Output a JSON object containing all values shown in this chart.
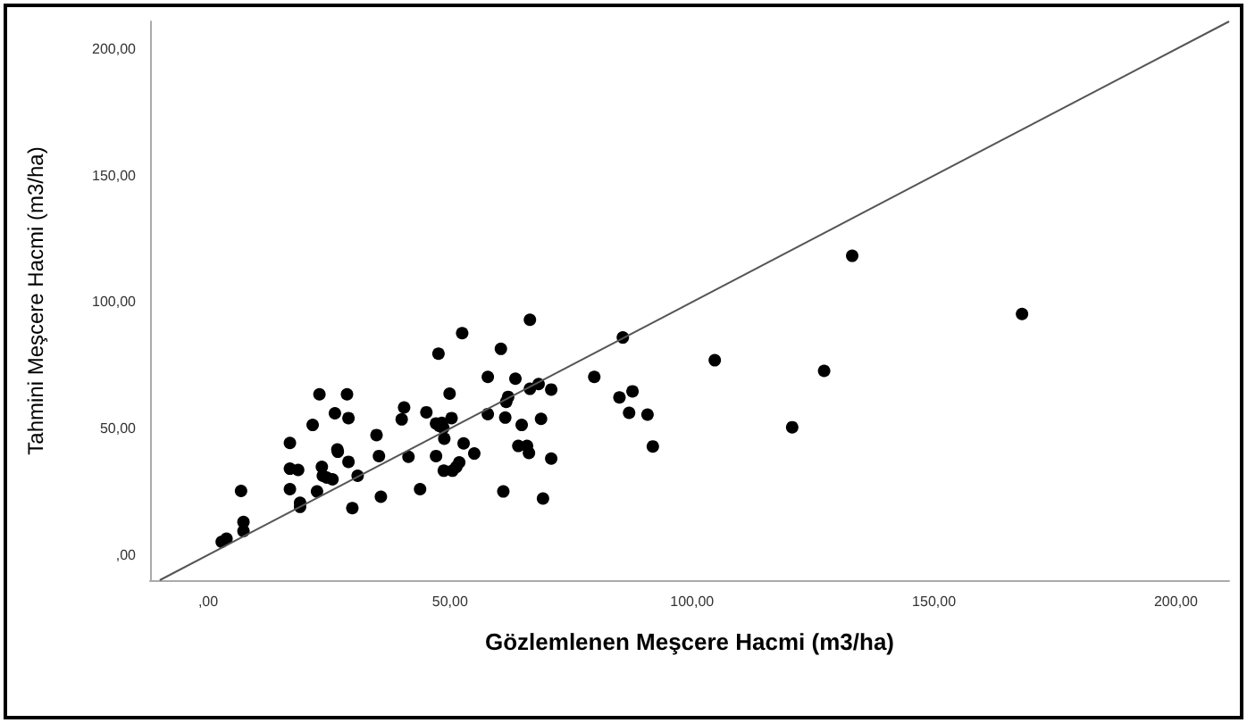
{
  "chart_data": {
    "type": "scatter",
    "xlabel": "Gözlemlenen Meşcere Hacmi (m3/ha)",
    "ylabel": "Tahmini Meşcere Hacmi (m3/ha)",
    "xlim": [
      -12,
      211
    ],
    "ylim": [
      -10,
      211
    ],
    "xticks": [
      {
        "value": 0,
        "label": ",00"
      },
      {
        "value": 50,
        "label": "50,00"
      },
      {
        "value": 100,
        "label": "100,00"
      },
      {
        "value": 150,
        "label": "150,00"
      },
      {
        "value": 200,
        "label": "200,00"
      }
    ],
    "yticks": [
      {
        "value": 0,
        "label": ",00"
      },
      {
        "value": 50,
        "label": "50,00"
      },
      {
        "value": 100,
        "label": "100,00"
      },
      {
        "value": 150,
        "label": "150,00"
      },
      {
        "value": 200,
        "label": "200,00"
      }
    ],
    "grid": false,
    "marker": "circle",
    "series": [
      {
        "color": "#000000",
        "x": [
          2.8,
          3.8,
          7.3,
          7.3,
          6.8,
          16.9,
          16.9,
          18.6,
          16.9,
          19,
          19,
          21.6,
          22.5,
          23,
          23.5,
          23.7,
          24.5,
          25.7,
          26.2,
          26.7,
          26.8,
          28.7,
          29,
          29,
          29.8,
          30.9,
          34.8,
          35.3,
          35.7,
          40,
          40.5,
          41.4,
          43.8,
          45.1,
          47.1,
          47.6,
          47.1,
          47.8,
          48.3,
          48.6,
          48.8,
          49.9,
          50.3,
          48.7,
          50.5,
          51.3,
          51.9,
          52.5,
          52.8,
          55,
          57.8,
          57.8,
          60.5,
          61,
          61.4,
          61.6,
          62,
          63.5,
          64.1,
          64.8,
          65.9,
          66.3,
          66.5,
          66.5,
          68.3,
          68.8,
          69.2,
          70.9,
          70.9,
          79.8,
          85.7,
          85,
          87.7,
          87,
          90.8,
          91.9,
          104.7,
          120.7,
          127.3,
          133.1,
          168.2
        ],
        "values": [
          5.2,
          6.4,
          9.4,
          13,
          25.3,
          26,
          34.1,
          33.6,
          44.3,
          20.6,
          19,
          51.4,
          25.1,
          63.5,
          34.8,
          31.3,
          30.6,
          29.9,
          56,
          41.7,
          40.8,
          63.5,
          54.1,
          36.8,
          18.5,
          31.3,
          47.4,
          39.1,
          23,
          53.6,
          58.3,
          38.8,
          26,
          56.4,
          52,
          79.6,
          39.1,
          51,
          52.2,
          50.3,
          46,
          63.8,
          54.1,
          33.3,
          33.3,
          34.8,
          36.6,
          87.7,
          44.1,
          40.1,
          70.4,
          55.7,
          81.5,
          25.1,
          54.3,
          60.5,
          62.5,
          69.7,
          43.1,
          51.4,
          43.1,
          40.3,
          93,
          65.7,
          67.6,
          53.8,
          22.3,
          65.4,
          38.1,
          70.4,
          86,
          62.3,
          64.7,
          56.2,
          55.5,
          42.9,
          77,
          50.5,
          72.8,
          118.3,
          95.3
        ]
      },
      {
        "type": "line",
        "color": "#555555",
        "marker": "none",
        "x": [
          -10,
          211
        ],
        "values": [
          -10,
          211
        ]
      }
    ]
  }
}
